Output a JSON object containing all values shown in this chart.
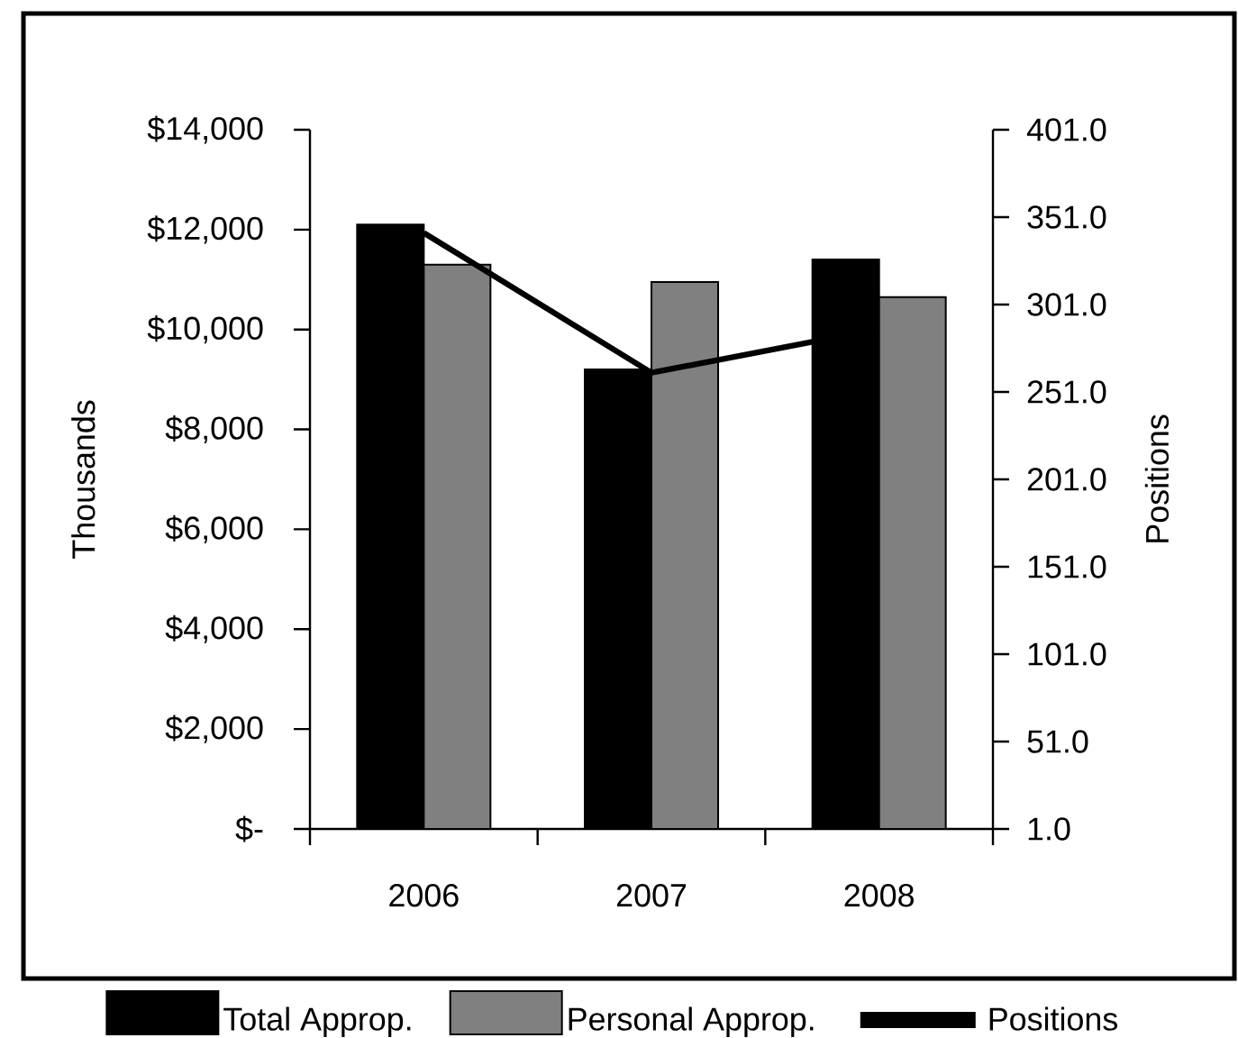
{
  "chart_data": {
    "type": "bar",
    "categories": [
      "2006",
      "2007",
      "2008"
    ],
    "series": [
      {
        "name": "Total Approp.",
        "color": "#000000",
        "values": [
          12100,
          9200,
          11400
        ]
      },
      {
        "name": "Personal Approp.",
        "color": "#808080",
        "values": [
          11300,
          10950,
          10650
        ]
      },
      {
        "name": "Positions",
        "type": "line",
        "axis": "y2",
        "color": "#000000",
        "values": [
          342,
          262,
          287
        ]
      }
    ],
    "ylabel": "Thousands",
    "y2label": "Positions",
    "ylim": [
      0,
      14000
    ],
    "yticks": [
      {
        "value": 0,
        "label": "$-"
      },
      {
        "value": 2000,
        "label": "$2,000"
      },
      {
        "value": 4000,
        "label": "$4,000"
      },
      {
        "value": 6000,
        "label": "$6,000"
      },
      {
        "value": 8000,
        "label": "$8,000"
      },
      {
        "value": 10000,
        "label": "$10,000"
      },
      {
        "value": 12000,
        "label": "$12,000"
      },
      {
        "value": 14000,
        "label": "$14,000"
      }
    ],
    "y2lim": [
      1,
      401
    ],
    "y2ticks": [
      {
        "value": 1,
        "label": "1.0"
      },
      {
        "value": 51,
        "label": "51.0"
      },
      {
        "value": 101,
        "label": "101.0"
      },
      {
        "value": 151,
        "label": "151.0"
      },
      {
        "value": 201,
        "label": "201.0"
      },
      {
        "value": 251,
        "label": "251.0"
      },
      {
        "value": 301,
        "label": "301.0"
      },
      {
        "value": 351,
        "label": "351.0"
      },
      {
        "value": 401,
        "label": "401.0"
      }
    ],
    "legend": "bottom",
    "line_style": "solid"
  }
}
